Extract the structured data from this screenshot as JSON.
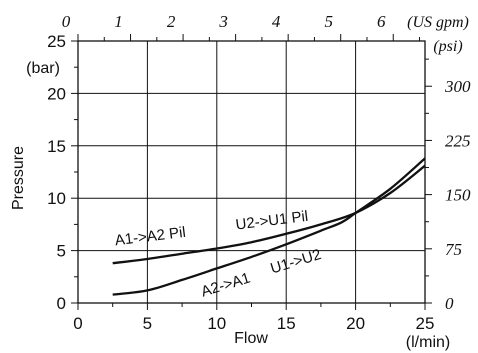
{
  "chart_data": {
    "type": "line",
    "title": "",
    "xlabel": "Flow",
    "ylabel": "Pressure",
    "x_unit": "(l/min)",
    "y_unit": "(bar)",
    "secondary_x_unit": "(US gpm)",
    "secondary_y_unit": "(psi)",
    "xlim": [
      0,
      25
    ],
    "ylim": [
      0,
      25
    ],
    "x_ticks": [
      "0",
      "5",
      "10",
      "15",
      "20",
      "25"
    ],
    "y_ticks": [
      "0",
      "5",
      "10",
      "15",
      "20",
      "25"
    ],
    "top_ticks": [
      {
        "value": 0,
        "label": "0"
      },
      {
        "value": 1,
        "label": "1"
      },
      {
        "value": 2,
        "label": "2"
      },
      {
        "value": 3,
        "label": "3"
      },
      {
        "value": 4,
        "label": "4"
      },
      {
        "value": 5,
        "label": "5"
      },
      {
        "value": 6,
        "label": "6"
      }
    ],
    "right_ticks": [
      {
        "value": 0,
        "label": "0"
      },
      {
        "value": 75,
        "label": "75"
      },
      {
        "value": 150,
        "label": "150"
      },
      {
        "value": 225,
        "label": "225"
      },
      {
        "value": 300,
        "label": "300"
      }
    ],
    "grid": true,
    "series": [
      {
        "name": "A1->A2 Pil   U2->U1 Pil",
        "x": [
          2.5,
          5,
          7.5,
          10,
          12.5,
          15,
          17.5,
          20,
          22.5,
          25
        ],
        "y": [
          3.8,
          4.2,
          4.7,
          5.2,
          5.8,
          6.6,
          7.5,
          8.6,
          10.5,
          13.1
        ]
      },
      {
        "name": "A2->A1   U1->U2",
        "x": [
          2.5,
          5,
          7.5,
          10,
          12.5,
          15,
          17.5,
          19,
          20,
          22.5,
          25
        ],
        "y": [
          0.8,
          1.2,
          2.2,
          3.3,
          4.4,
          5.6,
          6.9,
          7.7,
          8.6,
          10.9,
          13.8
        ]
      }
    ],
    "curve_labels": [
      {
        "text": "A1->A2 Pil",
        "x": 2.7,
        "y": 5.5,
        "angle": -7
      },
      {
        "text": "U2->U1 Pil",
        "x": 11.4,
        "y": 7.0,
        "angle": -7
      },
      {
        "text": "A2->A1",
        "x": 9.0,
        "y": 0.6,
        "angle": -17
      },
      {
        "text": "U1->U2",
        "x": 14.0,
        "y": 2.8,
        "angle": -17
      }
    ]
  }
}
